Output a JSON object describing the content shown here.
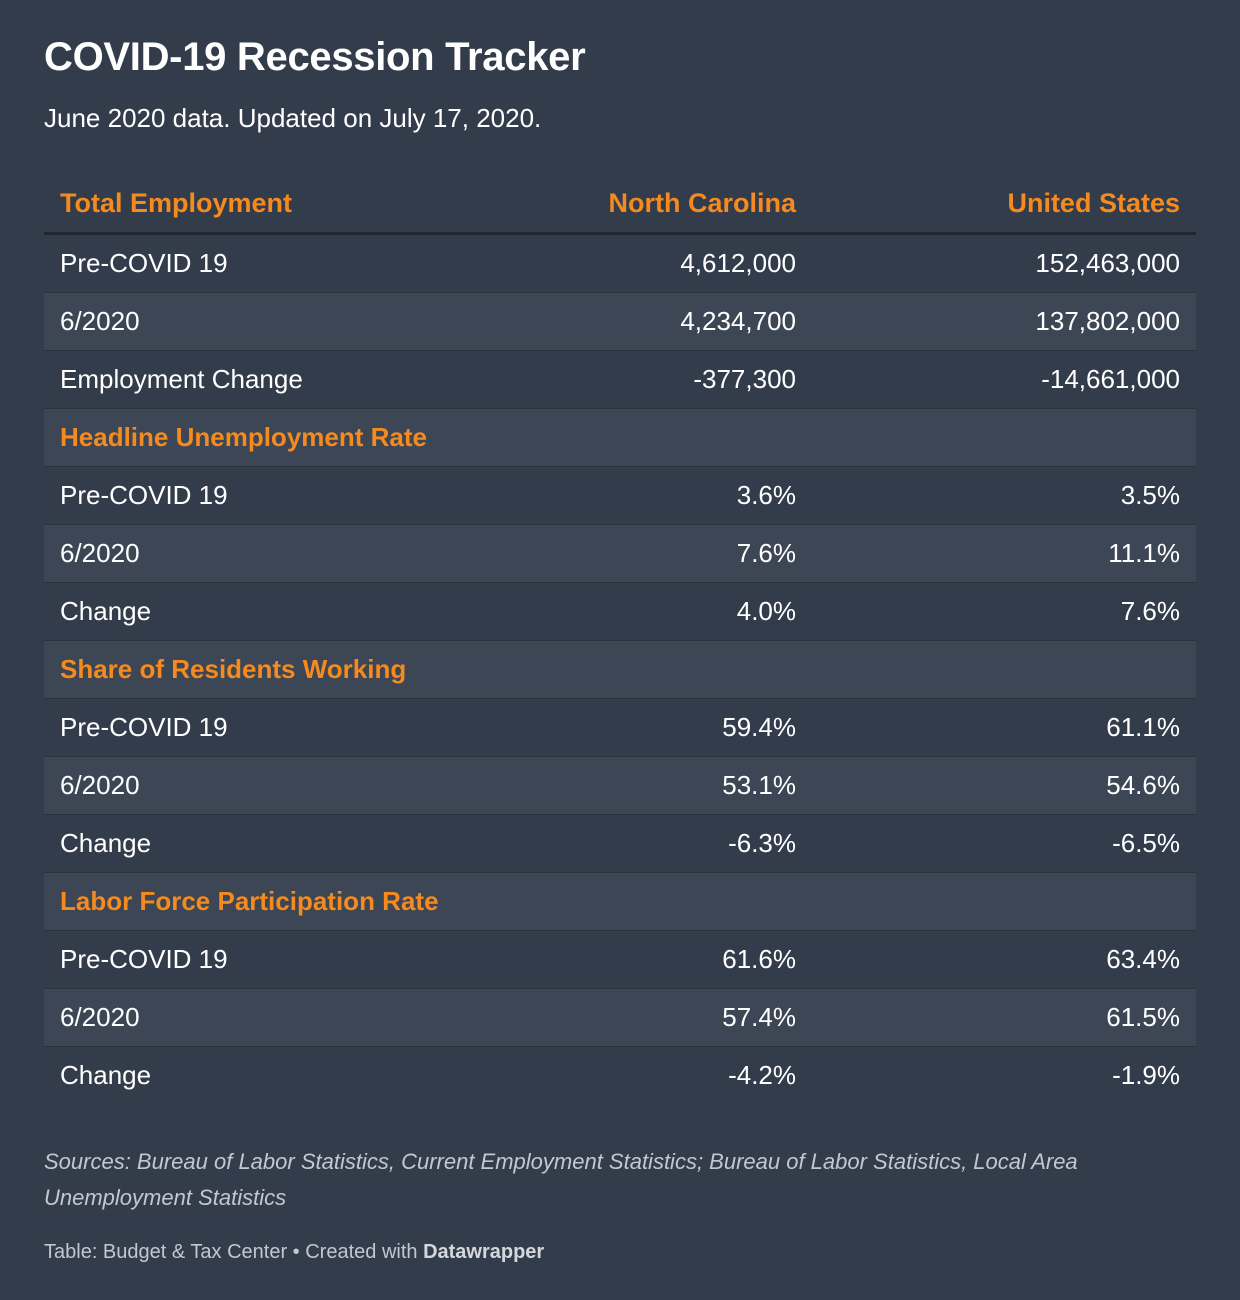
{
  "chart_data": {
    "type": "table",
    "title": "COVID-19 Recession Tracker",
    "subtitle": "June 2020 data. Updated on July 17, 2020.",
    "header": [
      "Total Employment",
      "North Carolina",
      "United States"
    ],
    "sections": [
      {
        "name": "Total Employment",
        "rows": [
          {
            "label": "Pre-COVID 19",
            "nc": "4,612,000",
            "us": "152,463,000"
          },
          {
            "label": "6/2020",
            "nc": "4,234,700",
            "us": "137,802,000"
          },
          {
            "label": "Employment Change",
            "nc": "-377,300",
            "us": "-14,661,000"
          }
        ]
      },
      {
        "name": "Headline Unemployment Rate",
        "rows": [
          {
            "label": "Pre-COVID 19",
            "nc": "3.6%",
            "us": "3.5%"
          },
          {
            "label": "6/2020",
            "nc": "7.6%",
            "us": "11.1%"
          },
          {
            "label": "Change",
            "nc": "4.0%",
            "us": "7.6%"
          }
        ]
      },
      {
        "name": "Share of Residents Working",
        "rows": [
          {
            "label": "Pre-COVID 19",
            "nc": "59.4%",
            "us": "61.1%"
          },
          {
            "label": "6/2020",
            "nc": "53.1%",
            "us": "54.6%"
          },
          {
            "label": "Change",
            "nc": "-6.3%",
            "us": "-6.5%"
          }
        ]
      },
      {
        "name": "Labor Force Participation Rate",
        "rows": [
          {
            "label": "Pre-COVID 19",
            "nc": "61.6%",
            "us": "63.4%"
          },
          {
            "label": "6/2020",
            "nc": "57.4%",
            "us": "61.5%"
          },
          {
            "label": "Change",
            "nc": "-4.2%",
            "us": "-1.9%"
          }
        ]
      }
    ],
    "notes": "Sources: Bureau of Labor Statistics, Current Employment Statistics; Bureau of Labor Statistics, Local Area Unemployment Statistics",
    "footer": {
      "prefix": "Table: Budget & Tax Center • Created with ",
      "brand": "Datawrapper"
    }
  },
  "colors": {
    "background": "#333c4b",
    "row_alt": "#3c4654",
    "accent": "#f58a1f",
    "text": "#ffffff",
    "muted": "#c3c8d0"
  }
}
